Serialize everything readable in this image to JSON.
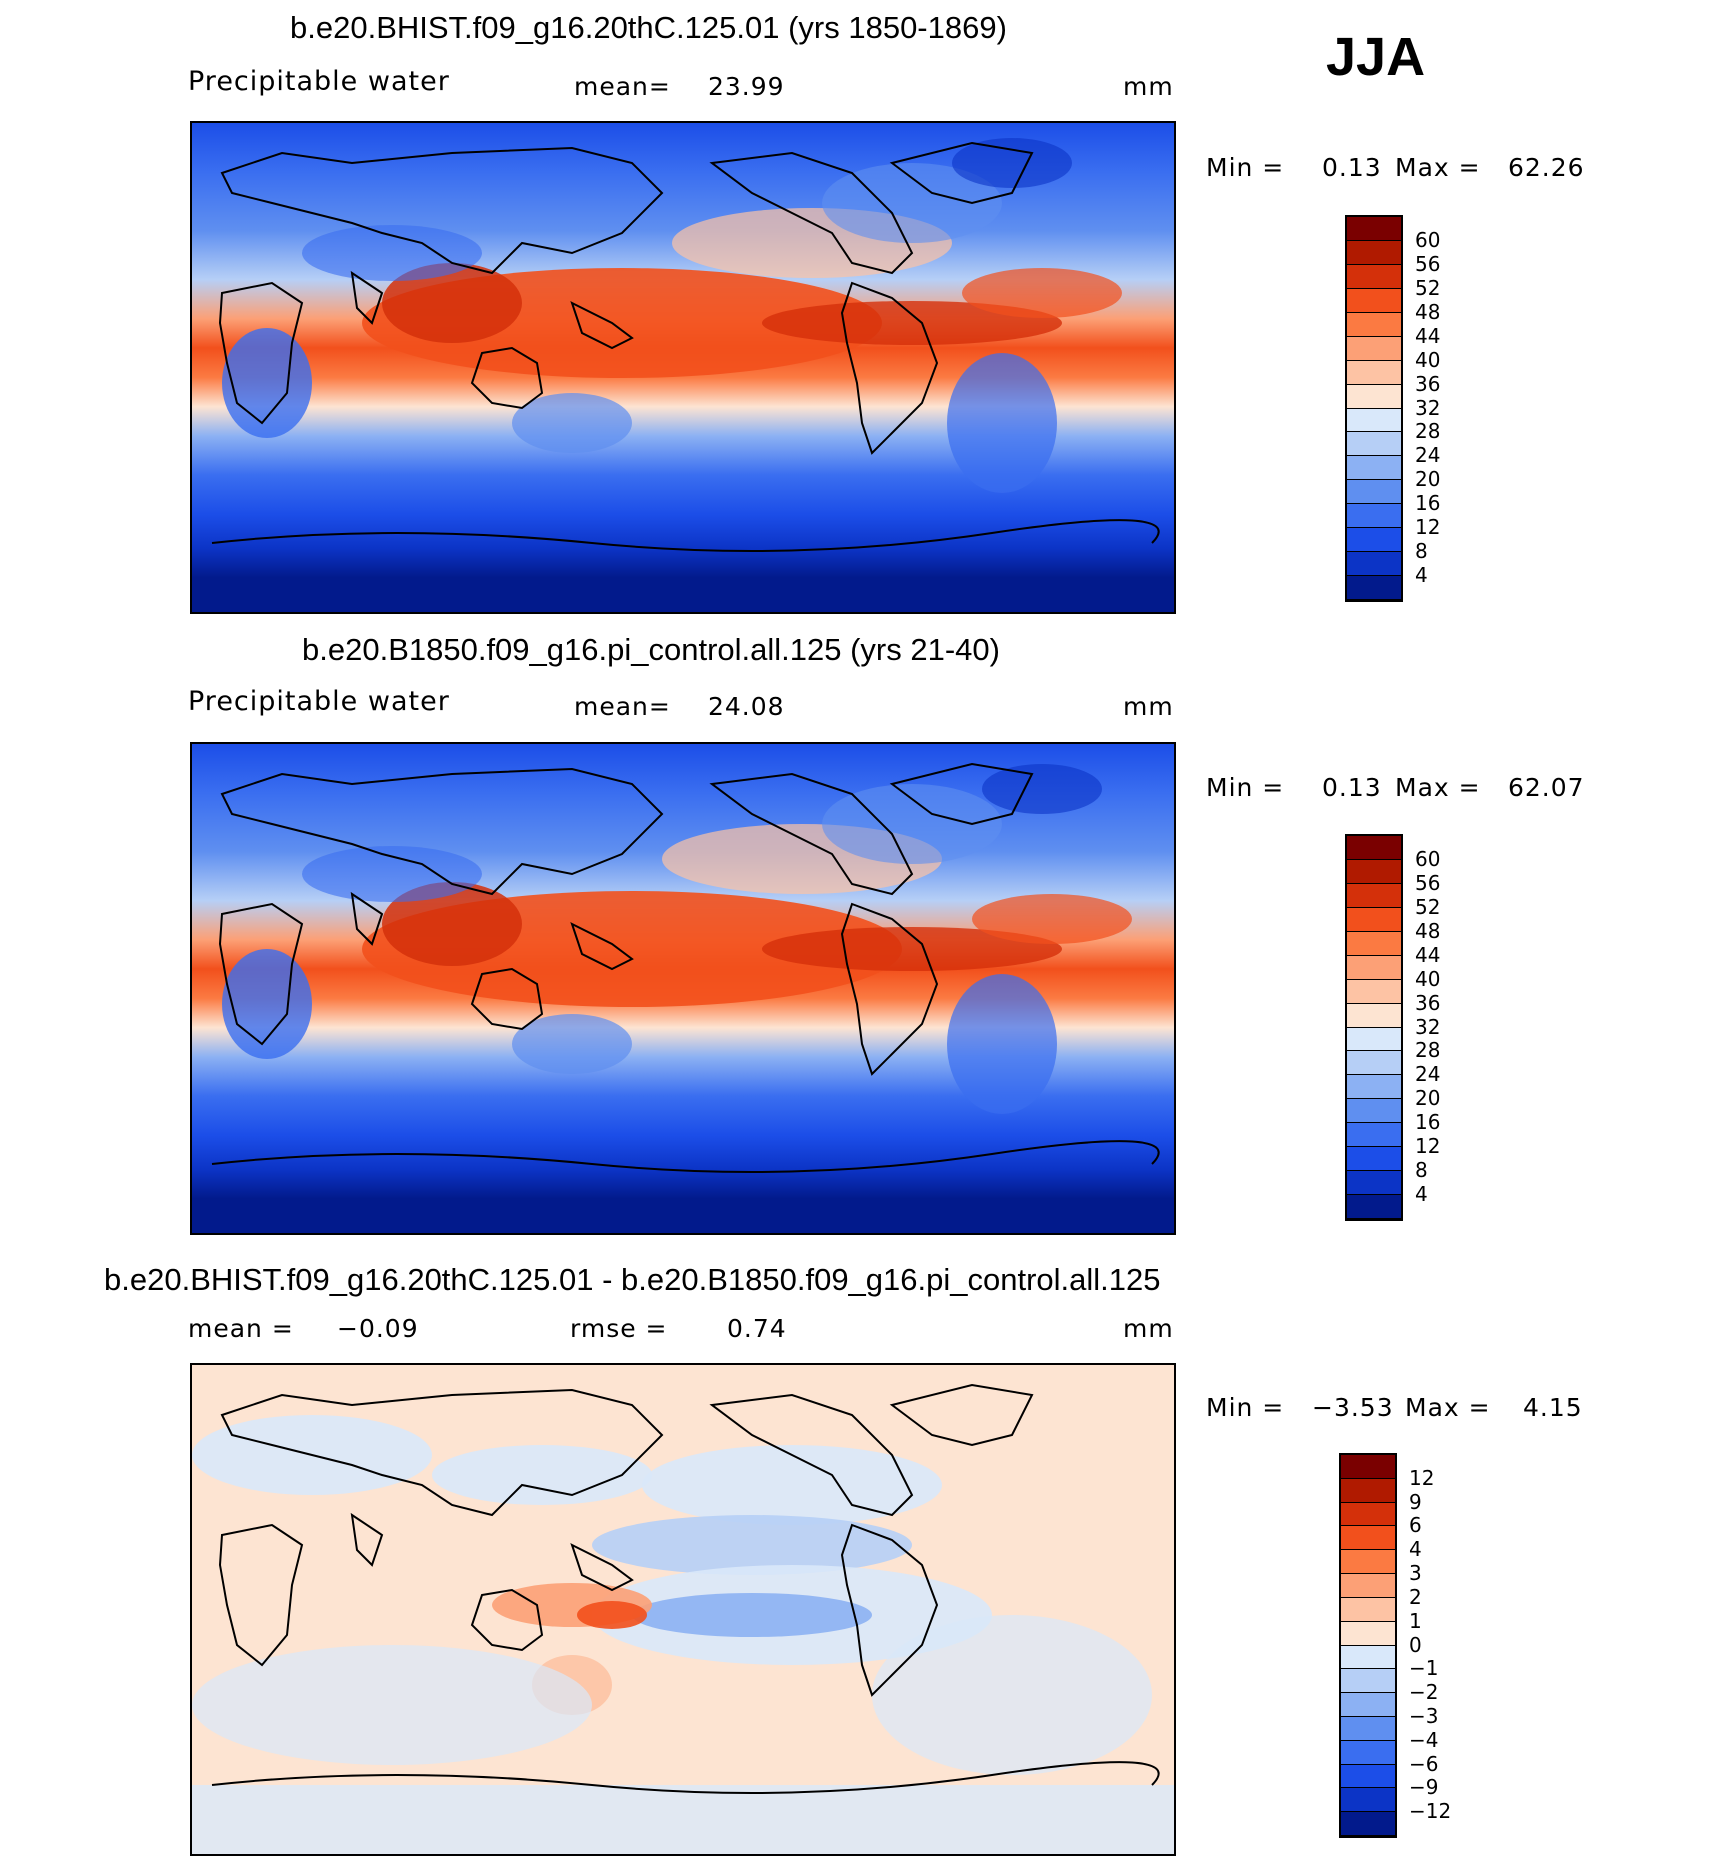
{
  "season": "JJA",
  "panels": [
    {
      "title": "b.e20.BHIST.f09_g16.20thC.125.01 (yrs 1850-1869)",
      "left_label": "Precipitable water",
      "middle_label": "mean=",
      "middle_value": "23.99",
      "units": "mm",
      "min_label": "Min =",
      "min_value": "0.13",
      "max_label": "Max =",
      "max_value": "62.26",
      "colorbar": {
        "labels": [
          "60",
          "56",
          "52",
          "48",
          "44",
          "40",
          "36",
          "32",
          "28",
          "24",
          "20",
          "16",
          "12",
          "8",
          "4"
        ],
        "colors": [
          "#7a0000",
          "#b01a00",
          "#d4300a",
          "#f2501c",
          "#fb7a42",
          "#fca076",
          "#fdc3a4",
          "#fde4d2",
          "#d9e8fa",
          "#b6cff6",
          "#8cb1f3",
          "#5f8ff0",
          "#3a6ef0",
          "#1c4ee8",
          "#0c34c6",
          "#021a8c"
        ]
      },
      "chart_data": {
        "type": "heatmap",
        "title": "b.e20.BHIST.f09_g16.20thC.125.01 (yrs 1850-1869)",
        "variable": "Precipitable water",
        "units": "mm",
        "mean": 23.99,
        "min": 0.13,
        "max": 62.26,
        "contour_levels": [
          4,
          8,
          12,
          16,
          20,
          24,
          28,
          32,
          36,
          40,
          44,
          48,
          52,
          56,
          60
        ]
      }
    },
    {
      "title": "b.e20.B1850.f09_g16.pi_control.all.125 (yrs 21-40)",
      "left_label": "Precipitable water",
      "middle_label": "mean=",
      "middle_value": "24.08",
      "units": "mm",
      "min_label": "Min =",
      "min_value": "0.13",
      "max_label": "Max =",
      "max_value": "62.07",
      "colorbar": {
        "labels": [
          "60",
          "56",
          "52",
          "48",
          "44",
          "40",
          "36",
          "32",
          "28",
          "24",
          "20",
          "16",
          "12",
          "8",
          "4"
        ],
        "colors": [
          "#7a0000",
          "#b01a00",
          "#d4300a",
          "#f2501c",
          "#fb7a42",
          "#fca076",
          "#fdc3a4",
          "#fde4d2",
          "#d9e8fa",
          "#b6cff6",
          "#8cb1f3",
          "#5f8ff0",
          "#3a6ef0",
          "#1c4ee8",
          "#0c34c6",
          "#021a8c"
        ]
      },
      "chart_data": {
        "type": "heatmap",
        "title": "b.e20.B1850.f09_g16.pi_control.all.125 (yrs 21-40)",
        "variable": "Precipitable water",
        "units": "mm",
        "mean": 24.08,
        "min": 0.13,
        "max": 62.07,
        "contour_levels": [
          4,
          8,
          12,
          16,
          20,
          24,
          28,
          32,
          36,
          40,
          44,
          48,
          52,
          56,
          60
        ]
      }
    },
    {
      "title": "b.e20.BHIST.f09_g16.20thC.125.01 - b.e20.B1850.f09_g16.pi_control.all.125",
      "left_label": "mean =",
      "left_value": "−0.09",
      "middle_label": "rmse =",
      "middle_value": "0.74",
      "units": "mm",
      "min_label": "Min =",
      "min_value": "−3.53",
      "max_label": "Max =",
      "max_value": "4.15",
      "colorbar": {
        "labels": [
          "12",
          "9",
          "6",
          "4",
          "3",
          "2",
          "1",
          "0",
          "−1",
          "−2",
          "−3",
          "−4",
          "−6",
          "−9",
          "−12"
        ],
        "colors": [
          "#7a0000",
          "#b01a00",
          "#d4300a",
          "#f2501c",
          "#fb7a42",
          "#fca076",
          "#fdc3a4",
          "#fde4d2",
          "#d9e8fa",
          "#b6cff6",
          "#8cb1f3",
          "#5f8ff0",
          "#3a6ef0",
          "#1c4ee8",
          "#0c34c6",
          "#021a8c"
        ]
      },
      "chart_data": {
        "type": "heatmap",
        "title": "b.e20.BHIST.f09_g16.20thC.125.01 - b.e20.B1850.f09_g16.pi_control.all.125",
        "units": "mm",
        "mean": -0.09,
        "rmse": 0.74,
        "min": -3.53,
        "max": 4.15,
        "contour_levels": [
          -12,
          -9,
          -6,
          -4,
          -3,
          -2,
          -1,
          0,
          1,
          2,
          3,
          4,
          6,
          9,
          12
        ]
      }
    }
  ]
}
